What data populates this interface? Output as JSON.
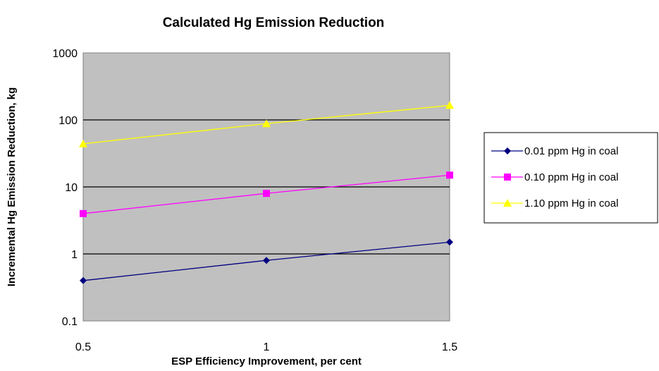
{
  "chart_data": {
    "type": "line",
    "title": "Calculated Hg Emission Reduction",
    "xlabel": "ESP Efficiency  Improvement, per cent",
    "ylabel": "Incremental Hg Emission  Reduction,  kg",
    "x": [
      0.5,
      1,
      1.5
    ],
    "x_tick_labels": [
      "0.5",
      "1",
      "1.5"
    ],
    "xlim": [
      0.5,
      1.5
    ],
    "ylim": [
      0.1,
      1000
    ],
    "yscale": "log",
    "y_tick_labels": [
      "0.1",
      "1",
      "10",
      "100",
      "1000"
    ],
    "grid": "horizontal",
    "plot_background": "#c0c0c0",
    "legend_position": "right",
    "series": [
      {
        "name": "0.01 ppm Hg in coal",
        "values": [
          0.4,
          0.8,
          1.5
        ],
        "color": "#000080",
        "marker": "diamond"
      },
      {
        "name": "0.10 ppm Hg in coal",
        "values": [
          4,
          8,
          15
        ],
        "color": "#ff00ff",
        "marker": "square"
      },
      {
        "name": "1.10 ppm Hg in coal",
        "values": [
          44,
          88,
          165
        ],
        "color": "#ffff00",
        "marker": "triangle"
      }
    ]
  }
}
